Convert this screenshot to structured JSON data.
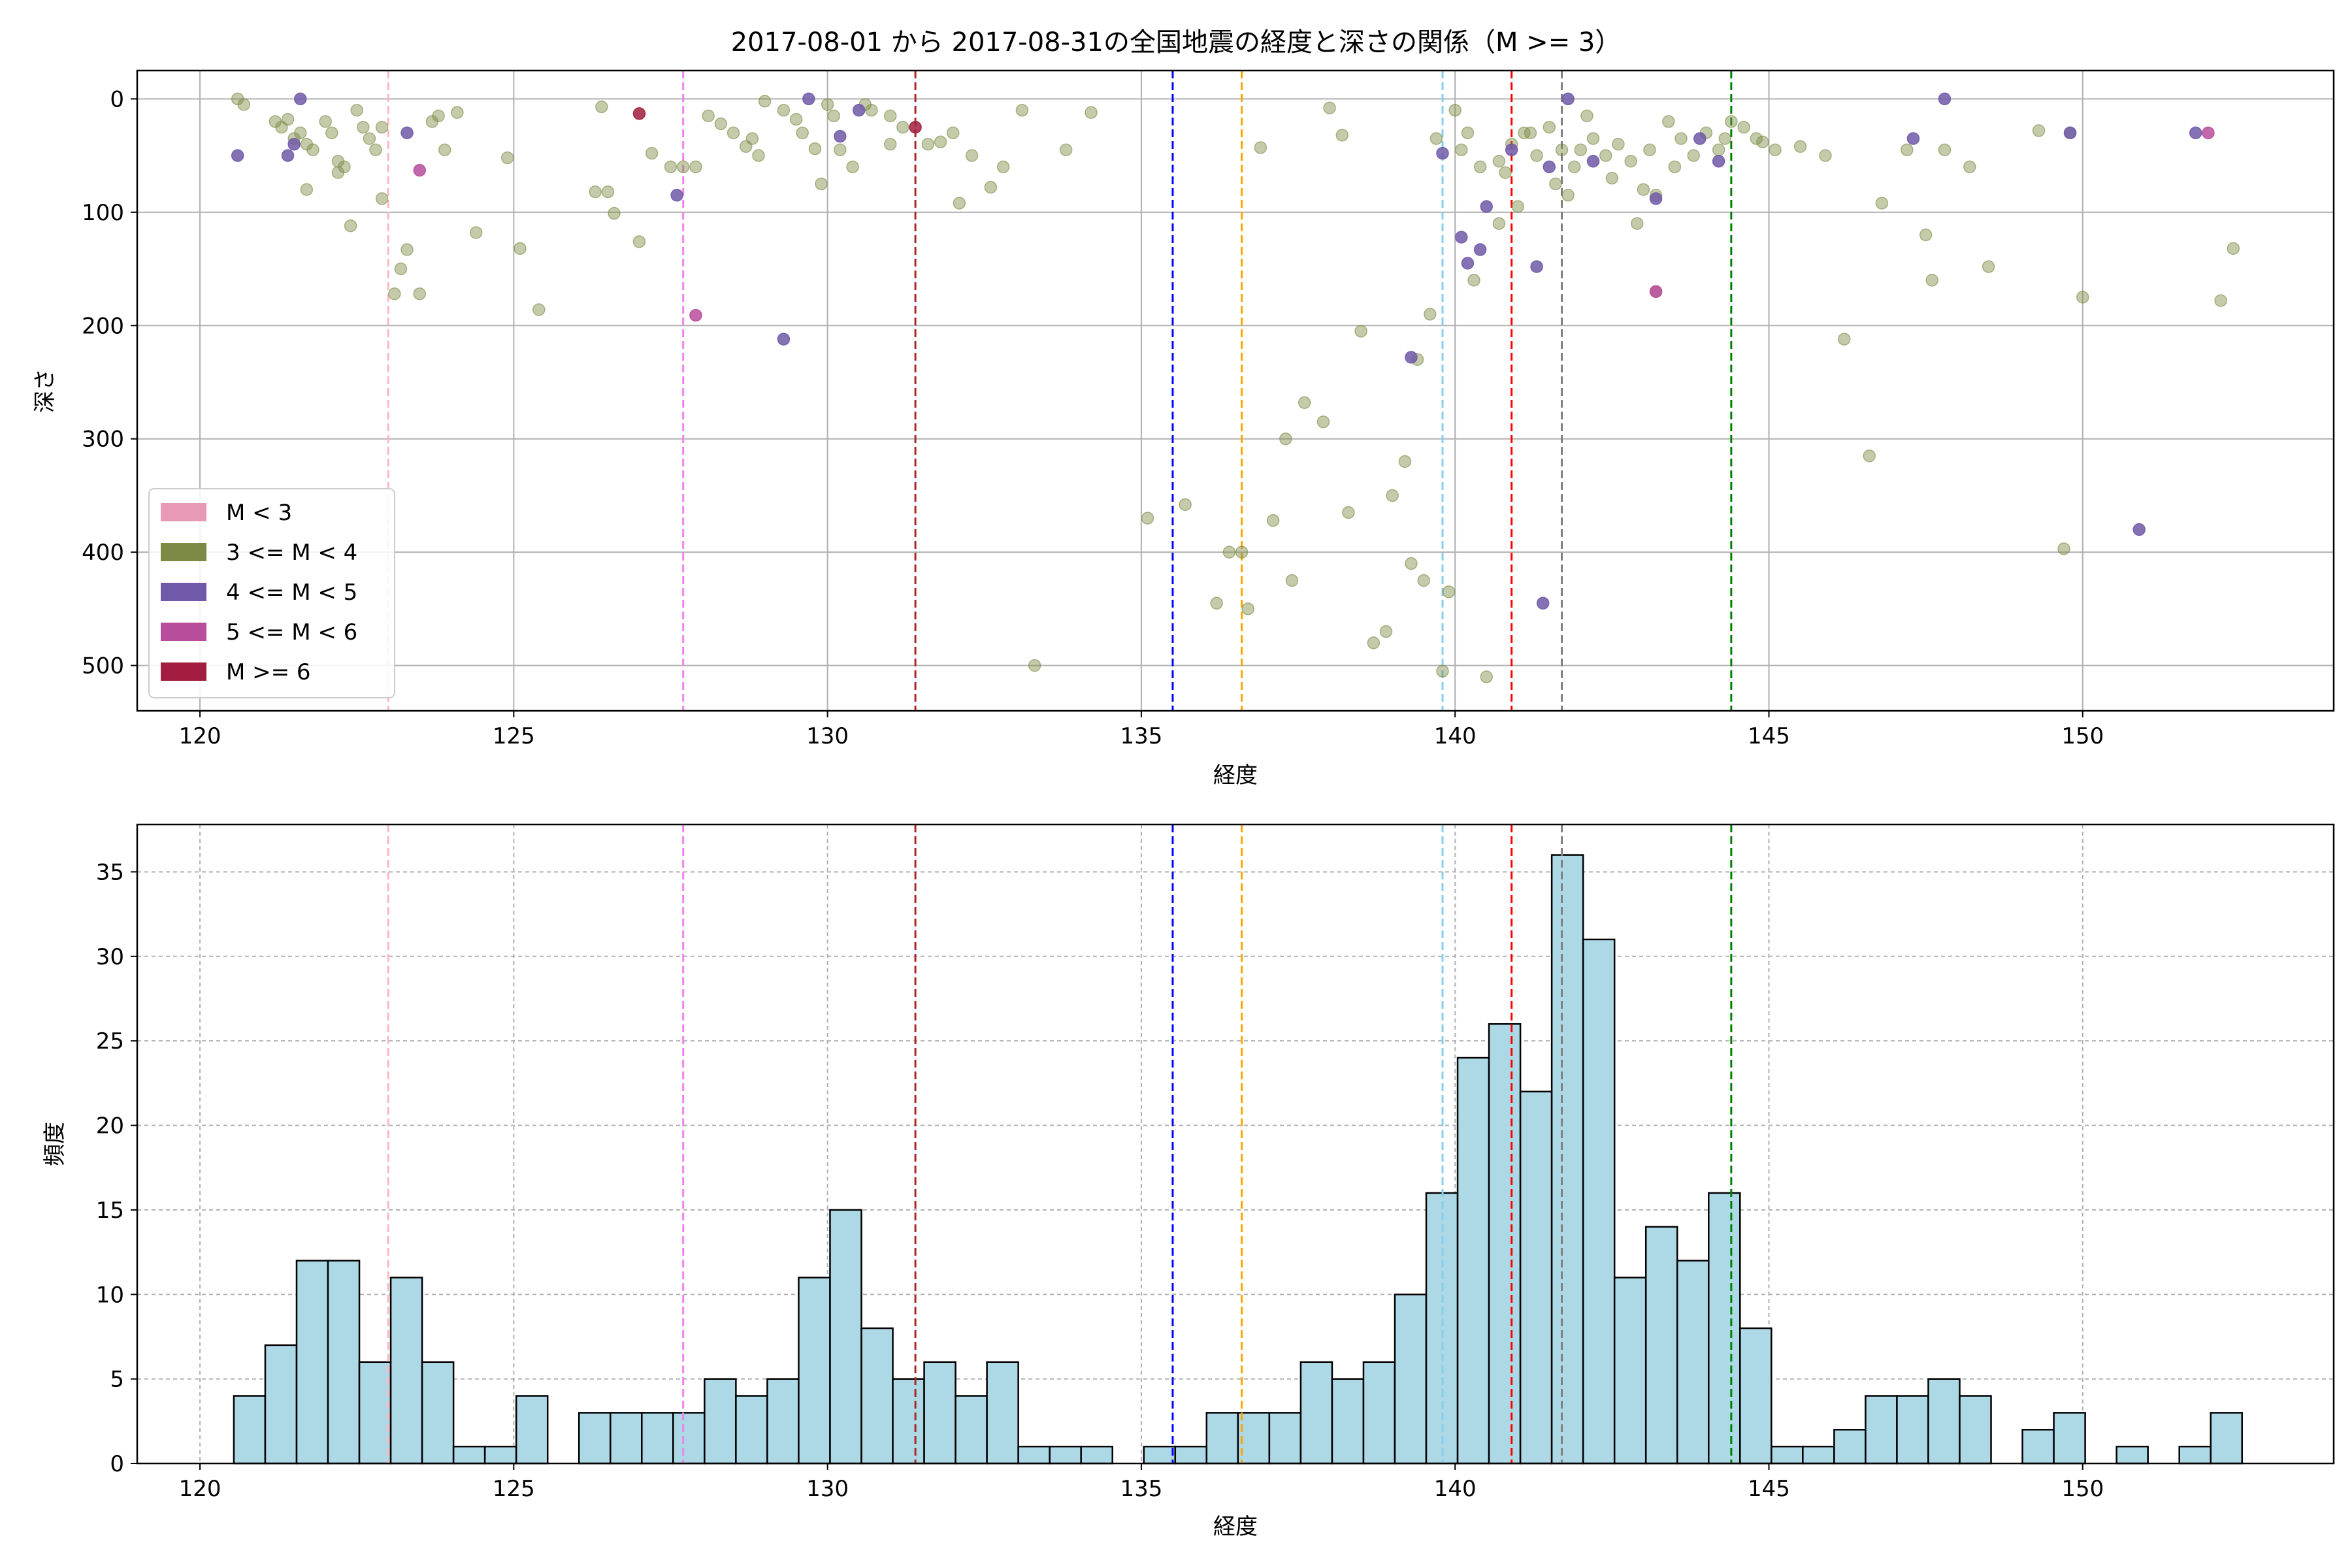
{
  "figure": {
    "title": "2017-08-01 から 2017-08-31の全国地震の経度と深さの関係（M >= 3）"
  },
  "chart_data": [
    {
      "type": "scatter",
      "xlabel": "経度",
      "ylabel": "深さ",
      "xlim": [
        119,
        154
      ],
      "ylim": [
        540,
        -25
      ],
      "y_inverted": true,
      "xticks": [
        120,
        125,
        130,
        135,
        140,
        145,
        150
      ],
      "yticks": [
        0,
        100,
        200,
        300,
        400,
        500
      ],
      "grid": true,
      "legend_position": "lower-left",
      "legend": [
        {
          "label": "M < 3",
          "color": "#e899b8"
        },
        {
          "label": "3 <= M < 4",
          "color": "#7b8b45"
        },
        {
          "label": "4 <= M < 5",
          "color": "#7059a8"
        },
        {
          "label": "5 <= M < 6",
          "color": "#b84d9c"
        },
        {
          "label": "M >= 6",
          "color": "#a21d3f"
        }
      ],
      "series": [
        {
          "name": "3 <= M < 4",
          "color": "#7b8b45",
          "points": [
            [
              120.6,
              0
            ],
            [
              120.7,
              5
            ],
            [
              121.2,
              20
            ],
            [
              121.3,
              25
            ],
            [
              121.4,
              18
            ],
            [
              121.6,
              30
            ],
            [
              121.7,
              40
            ],
            [
              121.8,
              45
            ],
            [
              121.7,
              80
            ],
            [
              122.0,
              20
            ],
            [
              122.1,
              30
            ],
            [
              122.2,
              55
            ],
            [
              122.3,
              60
            ],
            [
              122.5,
              10
            ],
            [
              122.6,
              25
            ],
            [
              122.7,
              35
            ],
            [
              122.8,
              45
            ],
            [
              122.4,
              112
            ],
            [
              122.2,
              65
            ],
            [
              122.9,
              88
            ],
            [
              123.1,
              172
            ],
            [
              123.3,
              133
            ],
            [
              123.2,
              150
            ],
            [
              123.5,
              172
            ],
            [
              123.7,
              20
            ],
            [
              123.8,
              15
            ],
            [
              124.1,
              12
            ],
            [
              123.9,
              45
            ],
            [
              124.4,
              118
            ],
            [
              124.9,
              52
            ],
            [
              125.1,
              132
            ],
            [
              125.4,
              186
            ],
            [
              126.4,
              7
            ],
            [
              126.3,
              82
            ],
            [
              126.5,
              82
            ],
            [
              126.6,
              101
            ],
            [
              127.0,
              126
            ],
            [
              127.2,
              48
            ],
            [
              127.5,
              60
            ],
            [
              127.7,
              60
            ],
            [
              128.1,
              15
            ],
            [
              128.3,
              22
            ],
            [
              128.5,
              30
            ],
            [
              128.7,
              42
            ],
            [
              128.9,
              50
            ],
            [
              129.0,
              2
            ],
            [
              129.3,
              10
            ],
            [
              129.5,
              18
            ],
            [
              129.6,
              30
            ],
            [
              129.8,
              44
            ],
            [
              129.9,
              75
            ],
            [
              130.0,
              5
            ],
            [
              130.1,
              15
            ],
            [
              130.2,
              45
            ],
            [
              130.4,
              60
            ],
            [
              130.6,
              5
            ],
            [
              130.7,
              10
            ],
            [
              131.0,
              15
            ],
            [
              131.2,
              25
            ],
            [
              131.6,
              40
            ],
            [
              131.8,
              38
            ],
            [
              132.0,
              30
            ],
            [
              132.1,
              92
            ],
            [
              132.3,
              50
            ],
            [
              132.6,
              78
            ],
            [
              132.8,
              60
            ],
            [
              133.1,
              10
            ],
            [
              133.3,
              500
            ],
            [
              133.8,
              45
            ],
            [
              134.2,
              12
            ],
            [
              135.1,
              370
            ],
            [
              135.7,
              358
            ],
            [
              136.2,
              445
            ],
            [
              136.4,
              400
            ],
            [
              136.6,
              400
            ],
            [
              136.7,
              450
            ],
            [
              136.9,
              43
            ],
            [
              137.1,
              372
            ],
            [
              137.3,
              300
            ],
            [
              137.4,
              425
            ],
            [
              137.6,
              268
            ],
            [
              137.9,
              285
            ],
            [
              138.0,
              8
            ],
            [
              138.2,
              32
            ],
            [
              138.3,
              365
            ],
            [
              138.5,
              205
            ],
            [
              138.7,
              480
            ],
            [
              138.9,
              470
            ],
            [
              139.0,
              350
            ],
            [
              139.2,
              320
            ],
            [
              139.3,
              410
            ],
            [
              139.5,
              425
            ],
            [
              139.6,
              190
            ],
            [
              139.8,
              505
            ],
            [
              139.9,
              435
            ],
            [
              140.0,
              10
            ],
            [
              140.2,
              30
            ],
            [
              140.4,
              60
            ],
            [
              140.5,
              510
            ],
            [
              140.7,
              55
            ],
            [
              140.9,
              40
            ],
            [
              141.1,
              30
            ],
            [
              141.3,
              50
            ],
            [
              141.5,
              25
            ],
            [
              141.7,
              45
            ],
            [
              141.9,
              60
            ],
            [
              142.1,
              15
            ],
            [
              142.2,
              35
            ],
            [
              142.4,
              50
            ],
            [
              142.6,
              40
            ],
            [
              142.8,
              55
            ],
            [
              143.0,
              80
            ],
            [
              143.2,
              85
            ],
            [
              143.4,
              20
            ],
            [
              143.6,
              35
            ],
            [
              143.8,
              50
            ],
            [
              144.0,
              30
            ],
            [
              144.2,
              45
            ],
            [
              144.4,
              20
            ],
            [
              144.6,
              25
            ],
            [
              144.8,
              35
            ],
            [
              145.1,
              45
            ],
            [
              145.9,
              50
            ],
            [
              146.2,
              212
            ],
            [
              146.6,
              315
            ],
            [
              146.8,
              92
            ],
            [
              147.2,
              45
            ],
            [
              147.5,
              120
            ],
            [
              147.6,
              160
            ],
            [
              147.8,
              45
            ],
            [
              148.2,
              60
            ],
            [
              148.5,
              148
            ],
            [
              149.3,
              28
            ],
            [
              149.7,
              397
            ],
            [
              149.8,
              30
            ],
            [
              150.0,
              175
            ],
            [
              152.2,
              178
            ],
            [
              152.4,
              132
            ],
            [
              141.0,
              95
            ],
            [
              140.7,
              110
            ],
            [
              140.3,
              160
            ],
            [
              141.6,
              75
            ],
            [
              142.9,
              110
            ],
            [
              143.2,
              170
            ],
            [
              139.4,
              230
            ],
            [
              139.7,
              35
            ],
            [
              140.1,
              45
            ],
            [
              141.2,
              30
            ],
            [
              142.0,
              45
            ],
            [
              143.5,
              60
            ],
            [
              144.3,
              35
            ],
            [
              131.0,
              40
            ],
            [
              128.8,
              35
            ],
            [
              127.9,
              60
            ],
            [
              121.5,
              35
            ],
            [
              122.9,
              25
            ],
            [
              140.8,
              65
            ],
            [
              141.8,
              85
            ],
            [
              142.5,
              70
            ],
            [
              143.1,
              45
            ],
            [
              144.9,
              38
            ],
            [
              145.5,
              42
            ]
          ]
        },
        {
          "name": "4 <= M < 5",
          "color": "#7059a8",
          "points": [
            [
              120.6,
              50
            ],
            [
              121.5,
              40
            ],
            [
              121.4,
              50
            ],
            [
              121.6,
              0
            ],
            [
              123.3,
              30
            ],
            [
              127.6,
              85
            ],
            [
              129.3,
              212
            ],
            [
              129.7,
              0
            ],
            [
              130.2,
              33
            ],
            [
              130.5,
              10
            ],
            [
              139.3,
              228
            ],
            [
              139.8,
              48
            ],
            [
              140.1,
              122
            ],
            [
              140.2,
              145
            ],
            [
              140.4,
              133
            ],
            [
              140.5,
              95
            ],
            [
              141.3,
              148
            ],
            [
              141.4,
              445
            ],
            [
              141.8,
              0
            ],
            [
              142.2,
              55
            ],
            [
              143.2,
              88
            ],
            [
              143.9,
              35
            ],
            [
              144.2,
              55
            ],
            [
              147.3,
              35
            ],
            [
              147.8,
              0
            ],
            [
              149.8,
              30
            ],
            [
              150.9,
              380
            ],
            [
              151.8,
              30
            ],
            [
              140.9,
              45
            ],
            [
              141.5,
              60
            ]
          ]
        },
        {
          "name": "5 <= M < 6",
          "color": "#b84d9c",
          "points": [
            [
              123.5,
              63
            ],
            [
              127.9,
              191
            ],
            [
              143.2,
              170
            ],
            [
              152.0,
              30
            ]
          ]
        },
        {
          "name": "M >= 6",
          "color": "#a21d3f",
          "points": [
            [
              127.0,
              13
            ],
            [
              131.4,
              25
            ]
          ]
        }
      ],
      "vertical_lines": [
        {
          "x": 123.0,
          "color": "#ffb6c1"
        },
        {
          "x": 127.7,
          "color": "#ee82ee"
        },
        {
          "x": 131.4,
          "color": "#a52a2a"
        },
        {
          "x": 135.5,
          "color": "#0000ff"
        },
        {
          "x": 136.6,
          "color": "#ffa500"
        },
        {
          "x": 139.8,
          "color": "#87ceeb"
        },
        {
          "x": 140.9,
          "color": "#ff0000"
        },
        {
          "x": 141.7,
          "color": "#808080"
        },
        {
          "x": 144.4,
          "color": "#008000"
        }
      ]
    },
    {
      "type": "bar",
      "xlabel": "経度",
      "ylabel": "頻度",
      "xlim": [
        119,
        154
      ],
      "ylim": [
        0,
        37.8
      ],
      "xticks": [
        120,
        125,
        130,
        135,
        140,
        145,
        150
      ],
      "yticks": [
        0,
        5,
        10,
        15,
        20,
        25,
        30,
        35
      ],
      "grid": true,
      "bar_color": "#add8e6",
      "bin_start": 120.54,
      "bin_width": 0.5,
      "values": [
        4,
        7,
        12,
        12,
        6,
        11,
        6,
        1,
        1,
        4,
        0,
        3,
        3,
        3,
        3,
        5,
        4,
        5,
        11,
        15,
        8,
        5,
        6,
        4,
        6,
        1,
        1,
        1,
        0,
        1,
        1,
        3,
        3,
        3,
        6,
        5,
        6,
        10,
        16,
        24,
        26,
        22,
        36,
        31,
        11,
        14,
        12,
        16,
        8,
        1,
        1,
        2,
        4,
        4,
        5,
        4,
        0,
        2,
        3,
        0,
        1,
        0,
        1,
        3
      ],
      "vertical_lines": [
        {
          "x": 123.0,
          "color": "#ffb6c1"
        },
        {
          "x": 127.7,
          "color": "#ee82ee"
        },
        {
          "x": 131.4,
          "color": "#a52a2a"
        },
        {
          "x": 135.5,
          "color": "#0000ff"
        },
        {
          "x": 136.6,
          "color": "#ffa500"
        },
        {
          "x": 139.8,
          "color": "#87ceeb"
        },
        {
          "x": 140.9,
          "color": "#ff0000"
        },
        {
          "x": 141.7,
          "color": "#808080"
        },
        {
          "x": 144.4,
          "color": "#008000"
        }
      ]
    }
  ]
}
